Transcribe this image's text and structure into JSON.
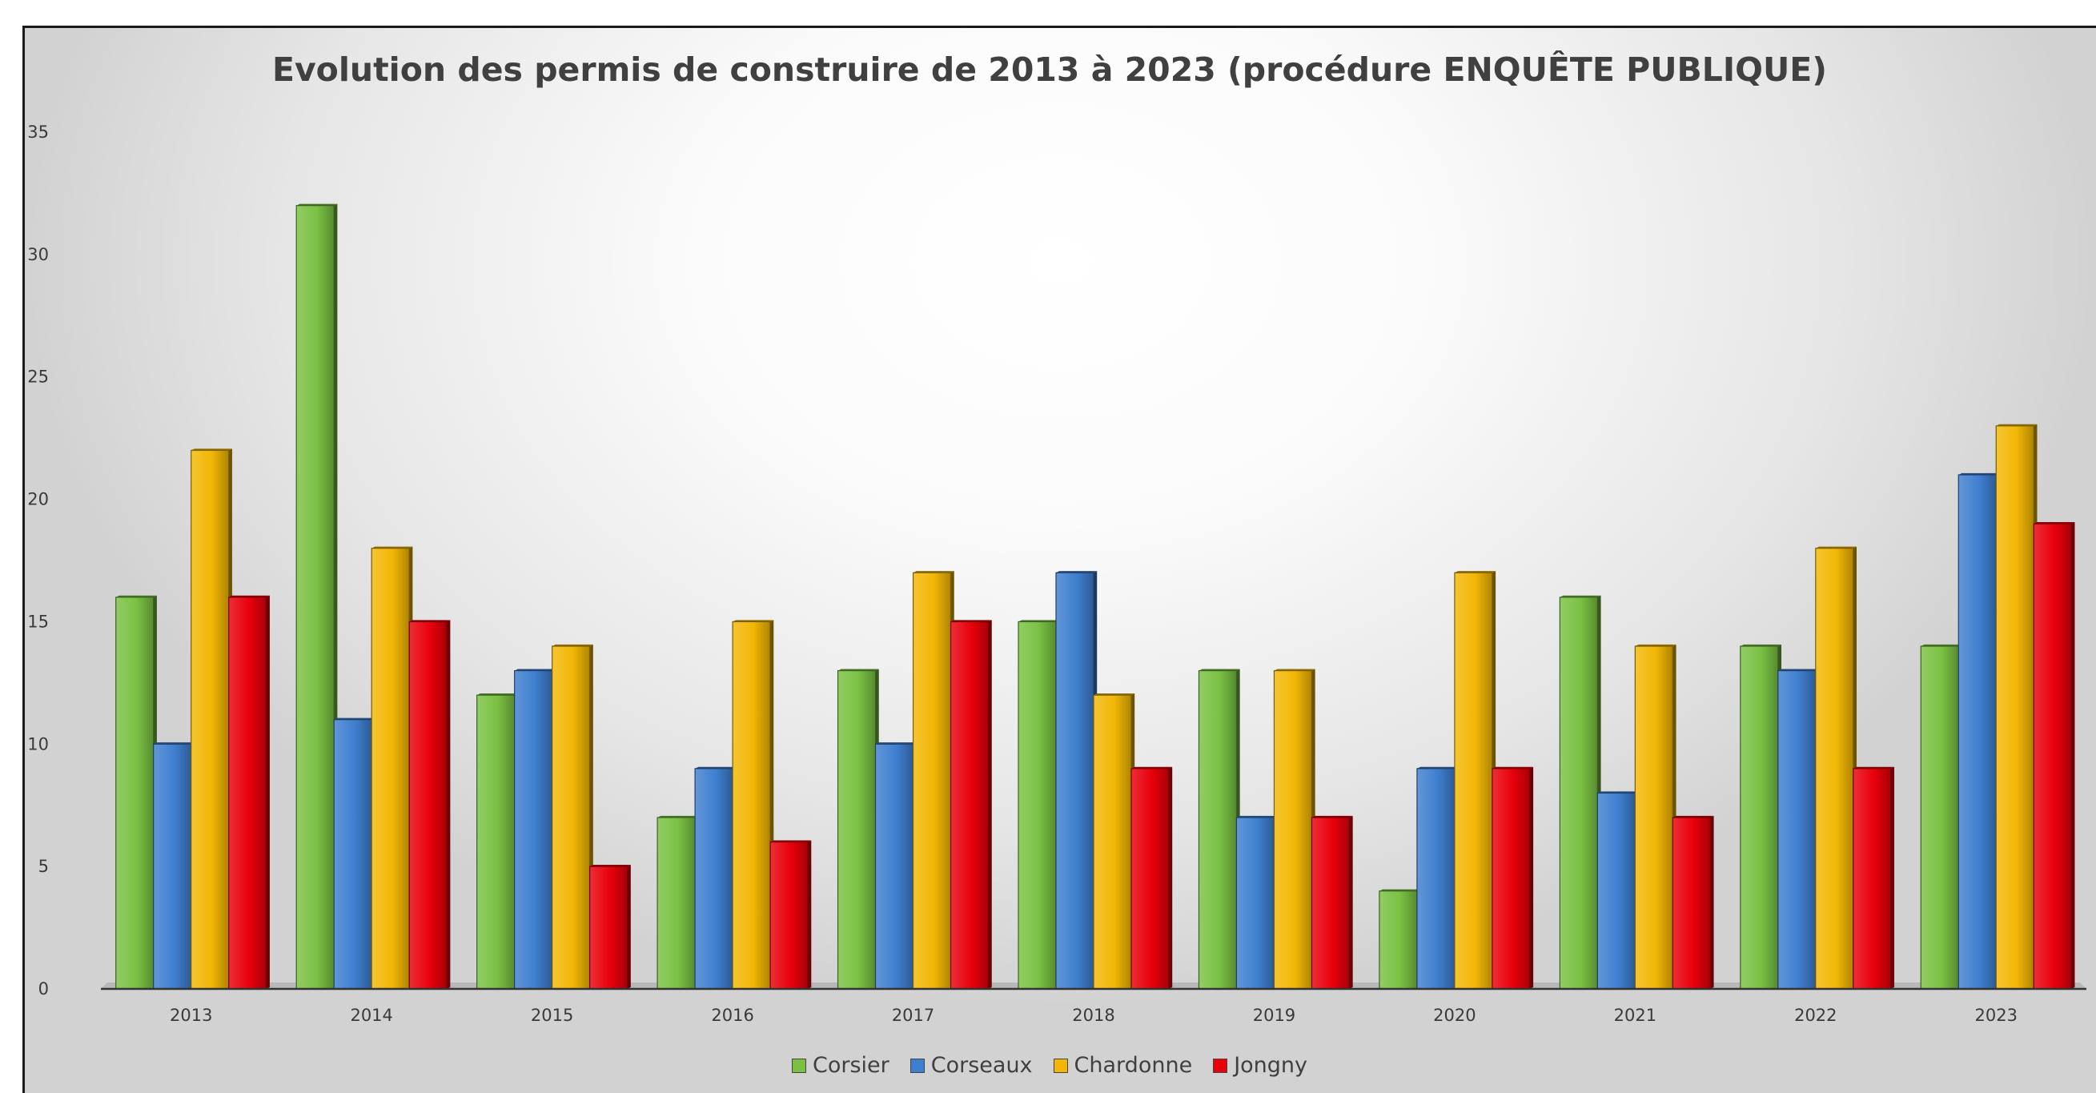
{
  "chart_data": {
    "type": "bar",
    "title": "Evolution des permis de construire de 2013 à 2023 (procédure ENQUÊTE PUBLIQUE)",
    "categories": [
      "2013",
      "2014",
      "2015",
      "2016",
      "2017",
      "2018",
      "2019",
      "2020",
      "2021",
      "2022",
      "2023"
    ],
    "series": [
      {
        "name": "Corsier",
        "color": "#7ac143",
        "values": [
          16,
          32,
          12,
          7,
          13,
          15,
          13,
          4,
          16,
          14,
          14
        ]
      },
      {
        "name": "Corseaux",
        "color": "#3f7fd0",
        "values": [
          10,
          11,
          13,
          9,
          10,
          17,
          7,
          9,
          8,
          13,
          21
        ]
      },
      {
        "name": "Chardonne",
        "color": "#f2b705",
        "values": [
          22,
          18,
          14,
          15,
          17,
          12,
          13,
          17,
          14,
          18,
          23
        ]
      },
      {
        "name": "Jongny",
        "color": "#e8000b",
        "values": [
          16,
          15,
          5,
          6,
          15,
          9,
          7,
          9,
          7,
          9,
          19
        ]
      }
    ],
    "ylim": [
      0,
      35
    ],
    "yticks": [
      0,
      5,
      10,
      15,
      20,
      25,
      30,
      35
    ],
    "grid": false,
    "legend": "bottom-center",
    "xlabel": "",
    "ylabel": ""
  }
}
